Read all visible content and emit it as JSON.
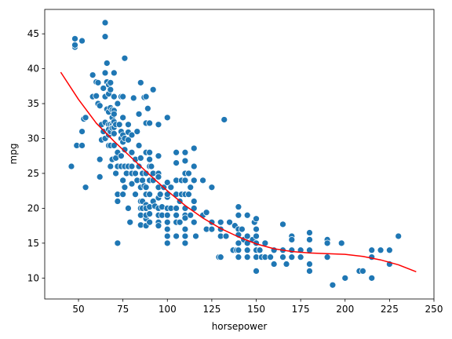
{
  "chart_data": {
    "type": "scatter",
    "xlabel": "horsepower",
    "ylabel": "mpg",
    "xlim": [
      31,
      250
    ],
    "ylim": [
      7,
      48.5
    ],
    "xticks": [
      50,
      75,
      100,
      125,
      150,
      175,
      200,
      225,
      250
    ],
    "yticks": [
      10,
      15,
      20,
      25,
      30,
      35,
      40,
      45
    ],
    "grid": false,
    "point_color": "#1f77b4",
    "curve_color": "#ff0000",
    "series": [
      {
        "type": "scatter",
        "points": [
          [
            46,
            26
          ],
          [
            48,
            43.1
          ],
          [
            48,
            43.4
          ],
          [
            48,
            44.3
          ],
          [
            49,
            29
          ],
          [
            52,
            44
          ],
          [
            52,
            31
          ],
          [
            52,
            29
          ],
          [
            53,
            32.8
          ],
          [
            54,
            33
          ],
          [
            54,
            23
          ],
          [
            58,
            39.1
          ],
          [
            58,
            36
          ],
          [
            60,
            36.1
          ],
          [
            60,
            38.1
          ],
          [
            61,
            38
          ],
          [
            61,
            35
          ],
          [
            62,
            27
          ],
          [
            62,
            34.7
          ],
          [
            62,
            24.5
          ],
          [
            63,
            32
          ],
          [
            63,
            29.8
          ],
          [
            64,
            37.2
          ],
          [
            64,
            31
          ],
          [
            65,
            46.6
          ],
          [
            65,
            44.6
          ],
          [
            65,
            39.4
          ],
          [
            65,
            36
          ],
          [
            65,
            30
          ],
          [
            65,
            32.3
          ],
          [
            66,
            40.8
          ],
          [
            66,
            38.1
          ],
          [
            66,
            34.2
          ],
          [
            67,
            37.7
          ],
          [
            67,
            33.8
          ],
          [
            67,
            36.4
          ],
          [
            67,
            32
          ],
          [
            67,
            31.3
          ],
          [
            67,
            29
          ],
          [
            67,
            30.5
          ],
          [
            68,
            37
          ],
          [
            68,
            38
          ],
          [
            68,
            26
          ],
          [
            68,
            34.4
          ],
          [
            68,
            32
          ],
          [
            68,
            29
          ],
          [
            68,
            31
          ],
          [
            69,
            31.9
          ],
          [
            69,
            27
          ],
          [
            69,
            33
          ],
          [
            69,
            34.1
          ],
          [
            69,
            31.5
          ],
          [
            70,
            39.4
          ],
          [
            70,
            36
          ],
          [
            70,
            34
          ],
          [
            70,
            30.7
          ],
          [
            70,
            33.5
          ],
          [
            70,
            32.4
          ],
          [
            70,
            31.6
          ],
          [
            70,
            29
          ],
          [
            71,
            32
          ],
          [
            71,
            27.2
          ],
          [
            71,
            25
          ],
          [
            72,
            35
          ],
          [
            72,
            26
          ],
          [
            72,
            22
          ],
          [
            72,
            21
          ],
          [
            72,
            15
          ],
          [
            72,
            28
          ],
          [
            73,
            32
          ],
          [
            74,
            36
          ],
          [
            74,
            31
          ],
          [
            74,
            30
          ],
          [
            74,
            27.5
          ],
          [
            74,
            26
          ],
          [
            75,
            33
          ],
          [
            75,
            36
          ],
          [
            75,
            30.5
          ],
          [
            75,
            29.5
          ],
          [
            75,
            24
          ],
          [
            75,
            22
          ],
          [
            76,
            41.5
          ],
          [
            76,
            28.4
          ],
          [
            76,
            26
          ],
          [
            76,
            30
          ],
          [
            76,
            23
          ],
          [
            77,
            25
          ],
          [
            78,
            30.9
          ],
          [
            78,
            32
          ],
          [
            78,
            29.8
          ],
          [
            78,
            26
          ],
          [
            78,
            20
          ],
          [
            79,
            18
          ],
          [
            80,
            23.5
          ],
          [
            80,
            25
          ],
          [
            80,
            26
          ],
          [
            80,
            30.5
          ],
          [
            80,
            28
          ],
          [
            81,
            35.8
          ],
          [
            82,
            25
          ],
          [
            82,
            27
          ],
          [
            82,
            22
          ],
          [
            83,
            24
          ],
          [
            83,
            31
          ],
          [
            84,
            29
          ],
          [
            84,
            26
          ],
          [
            84,
            33.5
          ],
          [
            84,
            29
          ],
          [
            85,
            38
          ],
          [
            85,
            27.2
          ],
          [
            85,
            20
          ],
          [
            85,
            23
          ],
          [
            85,
            21
          ],
          [
            85,
            17.6
          ],
          [
            85,
            19
          ],
          [
            86,
            25
          ],
          [
            86,
            24
          ],
          [
            86,
            21
          ],
          [
            86,
            20
          ],
          [
            87,
            35.9
          ],
          [
            87,
            23.2
          ],
          [
            88,
            32.2
          ],
          [
            88,
            36
          ],
          [
            88,
            25
          ],
          [
            88,
            28
          ],
          [
            88,
            22
          ],
          [
            88,
            20.5
          ],
          [
            88,
            18.5
          ],
          [
            88,
            20
          ],
          [
            88,
            19
          ],
          [
            88,
            23
          ],
          [
            88,
            17.5
          ],
          [
            89,
            34.3
          ],
          [
            90,
            32.2
          ],
          [
            90,
            28
          ],
          [
            90,
            27
          ],
          [
            90,
            26
          ],
          [
            90,
            24
          ],
          [
            90,
            22
          ],
          [
            90,
            20.2
          ],
          [
            90,
            19.2
          ],
          [
            90,
            18
          ],
          [
            91,
            26
          ],
          [
            92,
            37
          ],
          [
            92,
            25
          ],
          [
            92,
            21
          ],
          [
            92,
            24
          ],
          [
            93,
            20.3
          ],
          [
            95,
            32
          ],
          [
            95,
            27.5
          ],
          [
            95,
            25
          ],
          [
            95,
            24.5
          ],
          [
            95,
            23
          ],
          [
            95,
            21.5
          ],
          [
            95,
            20
          ],
          [
            95,
            19
          ],
          [
            95,
            18
          ],
          [
            95,
            17.5
          ],
          [
            96,
            22
          ],
          [
            97,
            19
          ],
          [
            97,
            20.2
          ],
          [
            98,
            23
          ],
          [
            100,
            33
          ],
          [
            100,
            23.7
          ],
          [
            100,
            21.6
          ],
          [
            100,
            20
          ],
          [
            100,
            19
          ],
          [
            100,
            18
          ],
          [
            100,
            17
          ],
          [
            100,
            16
          ],
          [
            100,
            15
          ],
          [
            100,
            22
          ],
          [
            102,
            20
          ],
          [
            102,
            23
          ],
          [
            105,
            28
          ],
          [
            105,
            26.5
          ],
          [
            105,
            24
          ],
          [
            105,
            22
          ],
          [
            105,
            20
          ],
          [
            105,
            18
          ],
          [
            105,
            16
          ],
          [
            105,
            19
          ],
          [
            107,
            21
          ],
          [
            107,
            18
          ],
          [
            108,
            24
          ],
          [
            108,
            22
          ],
          [
            110,
            28
          ],
          [
            110,
            26.8
          ],
          [
            110,
            25
          ],
          [
            110,
            24
          ],
          [
            110,
            22
          ],
          [
            110,
            20
          ],
          [
            110,
            19
          ],
          [
            110,
            18.6
          ],
          [
            110,
            17
          ],
          [
            110,
            16
          ],
          [
            110,
            15
          ],
          [
            112,
            25
          ],
          [
            112,
            22
          ],
          [
            113,
            23
          ],
          [
            113,
            19
          ],
          [
            115,
            26
          ],
          [
            115,
            28.6
          ],
          [
            115,
            24
          ],
          [
            115,
            21
          ],
          [
            115,
            20
          ],
          [
            115,
            18
          ],
          [
            116,
            16
          ],
          [
            120,
            24
          ],
          [
            120,
            19
          ],
          [
            122,
            17
          ],
          [
            122,
            19.4
          ],
          [
            125,
            23
          ],
          [
            125,
            17
          ],
          [
            125,
            18
          ],
          [
            129,
            13
          ],
          [
            130,
            13
          ],
          [
            130,
            18
          ],
          [
            130,
            17
          ],
          [
            130,
            16
          ],
          [
            132,
            32.7
          ],
          [
            133,
            16
          ],
          [
            135,
            18
          ],
          [
            137,
            14
          ],
          [
            138,
            17.5
          ],
          [
            139,
            14
          ],
          [
            140,
            20.2
          ],
          [
            140,
            19
          ],
          [
            140,
            17
          ],
          [
            140,
            16.2
          ],
          [
            140,
            15
          ],
          [
            140,
            14
          ],
          [
            140,
            13
          ],
          [
            142,
            17
          ],
          [
            143,
            15.5
          ],
          [
            145,
            16
          ],
          [
            145,
            19
          ],
          [
            145,
            15
          ],
          [
            145,
            14
          ],
          [
            145,
            13
          ],
          [
            148,
            15.5
          ],
          [
            149,
            18
          ],
          [
            150,
            18.5
          ],
          [
            150,
            17
          ],
          [
            150,
            16
          ],
          [
            150,
            15
          ],
          [
            150,
            14
          ],
          [
            150,
            13
          ],
          [
            150,
            11
          ],
          [
            152,
            14
          ],
          [
            153,
            13
          ],
          [
            155,
            15
          ],
          [
            155,
            13
          ],
          [
            158,
            13
          ],
          [
            160,
            14
          ],
          [
            160,
            12
          ],
          [
            165,
            17.7
          ],
          [
            165,
            14
          ],
          [
            165,
            13
          ],
          [
            167,
            12
          ],
          [
            170,
            16
          ],
          [
            170,
            15.5
          ],
          [
            170,
            14
          ],
          [
            170,
            13
          ],
          [
            175,
            14
          ],
          [
            175,
            13
          ],
          [
            180,
            16.5
          ],
          [
            180,
            15.5
          ],
          [
            180,
            12
          ],
          [
            180,
            11
          ],
          [
            180,
            14
          ],
          [
            190,
            15.5
          ],
          [
            190,
            15
          ],
          [
            190,
            13
          ],
          [
            193,
            9
          ],
          [
            198,
            15
          ],
          [
            200,
            10
          ],
          [
            208,
            11
          ],
          [
            210,
            11
          ],
          [
            215,
            14
          ],
          [
            215,
            13
          ],
          [
            215,
            10
          ],
          [
            220,
            14
          ],
          [
            225,
            14
          ],
          [
            225,
            12
          ],
          [
            230,
            16
          ]
        ]
      },
      {
        "type": "line",
        "points": [
          [
            40,
            39.5
          ],
          [
            50,
            35.6
          ],
          [
            60,
            32.2
          ],
          [
            70,
            29.6
          ],
          [
            80,
            27.2
          ],
          [
            90,
            24.8
          ],
          [
            100,
            22.5
          ],
          [
            110,
            20.4
          ],
          [
            120,
            18.6
          ],
          [
            130,
            17.1
          ],
          [
            140,
            15.9
          ],
          [
            150,
            14.9
          ],
          [
            160,
            14.2
          ],
          [
            170,
            13.8
          ],
          [
            180,
            13.6
          ],
          [
            190,
            13.5
          ],
          [
            200,
            13.4
          ],
          [
            210,
            13.1
          ],
          [
            220,
            12.6
          ],
          [
            230,
            11.9
          ],
          [
            240,
            10.9
          ]
        ]
      }
    ]
  }
}
